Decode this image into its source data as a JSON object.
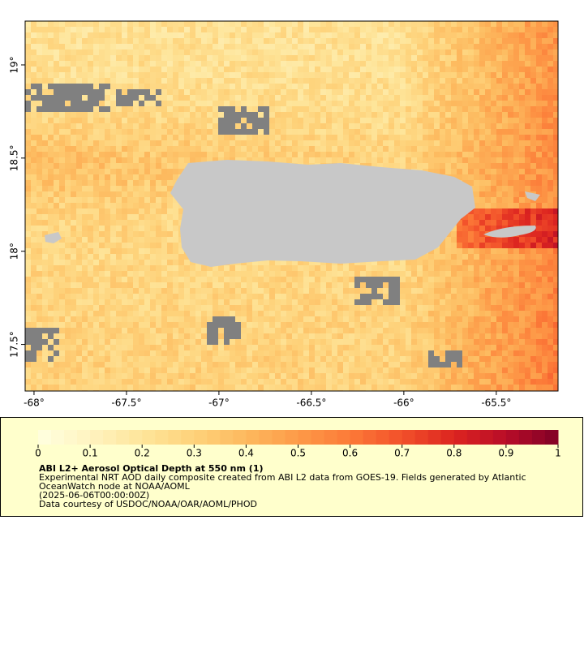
{
  "map": {
    "lon_range": [
      -68.048,
      -65.166
    ],
    "lat_range": [
      19.235,
      17.25
    ],
    "lon_ticks": [
      {
        "value": -68,
        "label": "-68°"
      },
      {
        "value": -67.5,
        "label": "-67.5°"
      },
      {
        "value": -67,
        "label": "-67°"
      },
      {
        "value": -66.5,
        "label": "-66.5°"
      },
      {
        "value": -66,
        "label": "-66°"
      },
      {
        "value": -65.5,
        "label": "-65.5°"
      }
    ],
    "lat_ticks": [
      {
        "value": 19,
        "label": "19°"
      },
      {
        "value": 18.5,
        "label": "18.5°"
      },
      {
        "value": 18,
        "label": "18°"
      },
      {
        "value": 17.5,
        "label": "17.5°"
      }
    ],
    "land_color": "#c8c8c8",
    "missing_color": "#808080"
  },
  "colorbar": {
    "range": [
      0,
      1
    ],
    "ticks": [
      0,
      0.1,
      0.2,
      0.3,
      0.4,
      0.5,
      0.6,
      0.7,
      0.8,
      0.9,
      1
    ],
    "colors": [
      "#ffffe0",
      "#fff3c0",
      "#fee59a",
      "#fed27a",
      "#fdb95e",
      "#fd9a48",
      "#fc7a38",
      "#f2502a",
      "#dc2420",
      "#b80d28",
      "#800026"
    ]
  },
  "caption": {
    "title": "ABI L2+ Aerosol Optical Depth at 550 nm (1)",
    "lines": [
      "Experimental NRT AOD daily composite created from ABI L2 data from GOES-19. Fields generated by Atlantic",
      "OceanWatch node at NOAA/AOML",
      "(2025-06-06T00:00:00Z)",
      "Data courtesy of USDOC/NOAA/OAR/AOML/PHOD"
    ]
  }
}
